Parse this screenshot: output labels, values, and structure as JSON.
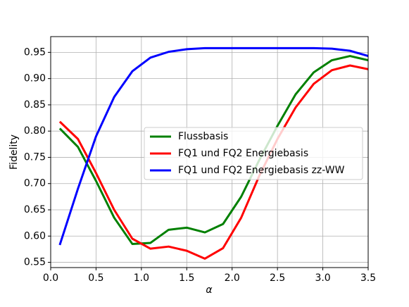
{
  "chart_data": {
    "type": "line",
    "x_label": "α",
    "y_label": "Fidelity",
    "x": [
      0.1,
      0.3,
      0.5,
      0.7,
      0.9,
      1.1,
      1.3,
      1.5,
      1.7,
      1.9,
      2.1,
      2.3,
      2.5,
      2.7,
      2.9,
      3.1,
      3.3,
      3.5
    ],
    "series": [
      {
        "name": "Flussbasis",
        "color": "#008000",
        "values": [
          0.805,
          0.77,
          0.705,
          0.635,
          0.585,
          0.587,
          0.612,
          0.616,
          0.607,
          0.623,
          0.675,
          0.745,
          0.81,
          0.87,
          0.912,
          0.935,
          0.943,
          0.935
        ]
      },
      {
        "name": "FQ1 und FQ2 Energiebasis",
        "color": "#ff0000",
        "values": [
          0.818,
          0.785,
          0.72,
          0.65,
          0.595,
          0.576,
          0.58,
          0.572,
          0.557,
          0.577,
          0.635,
          0.715,
          0.785,
          0.845,
          0.89,
          0.916,
          0.925,
          0.918
        ]
      },
      {
        "name": "FQ1 und FQ2 Energiebasis zz-WW",
        "color": "#0000ff",
        "values": [
          0.583,
          0.69,
          0.79,
          0.865,
          0.914,
          0.94,
          0.951,
          0.956,
          0.958,
          0.958,
          0.958,
          0.958,
          0.958,
          0.958,
          0.958,
          0.957,
          0.953,
          0.943
        ]
      }
    ],
    "xlim": [
      0,
      3.5
    ],
    "ylim": [
      0.54,
      0.98
    ],
    "xticks": [
      {
        "value": 0,
        "label": "0.0"
      },
      {
        "value": 0.5,
        "label": "0.5"
      },
      {
        "value": 1,
        "label": "1.0"
      },
      {
        "value": 1.5,
        "label": "1.5"
      },
      {
        "value": 2,
        "label": "2.0"
      },
      {
        "value": 2.5,
        "label": "2.5"
      },
      {
        "value": 3,
        "label": "3.0"
      },
      {
        "value": 3.5,
        "label": "3.5"
      }
    ],
    "yticks": [
      {
        "value": 0.55,
        "label": "0.55"
      },
      {
        "value": 0.6,
        "label": "0.60"
      },
      {
        "value": 0.65,
        "label": "0.65"
      },
      {
        "value": 0.7,
        "label": "0.70"
      },
      {
        "value": 0.75,
        "label": "0.75"
      },
      {
        "value": 0.8,
        "label": "0.80"
      },
      {
        "value": 0.85,
        "label": "0.85"
      },
      {
        "value": 0.9,
        "label": "0.90"
      },
      {
        "value": 0.95,
        "label": "0.95"
      }
    ],
    "grid": true,
    "legend": "center right"
  }
}
